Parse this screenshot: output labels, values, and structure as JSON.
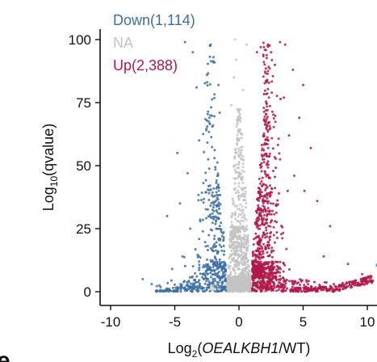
{
  "chart_data": {
    "type": "scatter",
    "subtype": "volcano",
    "xlabel_parts": [
      "Log",
      "2",
      "(",
      "OEALKBH1",
      "/WT)"
    ],
    "ylabel_parts": [
      "Log",
      "10",
      "(qvalue)"
    ],
    "xlim": [
      -11,
      11
    ],
    "ylim": [
      0,
      100
    ],
    "x_ticks": [
      -10,
      -5,
      0,
      5,
      10
    ],
    "y_ticks": [
      0,
      25,
      50,
      75,
      100
    ],
    "grid": false,
    "legend_placement": "top-left",
    "panel_letter": "e",
    "series": [
      {
        "name": "Down(1,114)",
        "color": "#3b6fa3",
        "x_range": [
          -7,
          -1
        ],
        "count": 1114
      },
      {
        "name": "NA",
        "color": "#c3c3c3",
        "x_range": [
          -1,
          1
        ]
      },
      {
        "name": "Up(2,388)",
        "color": "#b0194a",
        "x_range": [
          1,
          10
        ],
        "count": 2388
      }
    ]
  }
}
